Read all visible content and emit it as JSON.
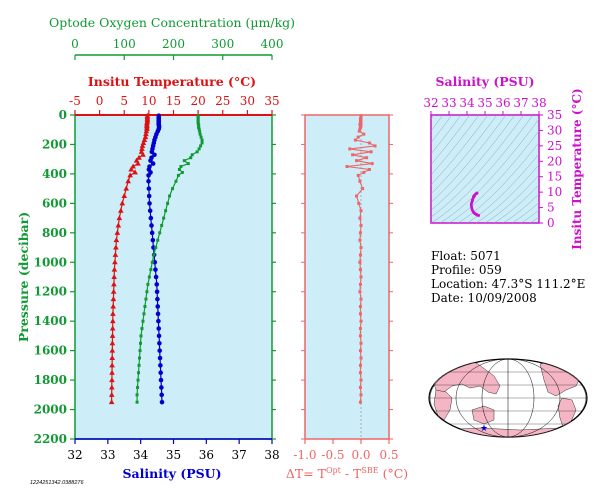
{
  "colors": {
    "panel_bg": "#cdeef9",
    "temperature": "#dd1111",
    "salinity": "#0000cc",
    "oxygen": "#119933",
    "delta_t": "#ee6666",
    "ts_axis": "#cc11cc",
    "axis_black": "#000000",
    "land": "#f4b6c4"
  },
  "float_info": {
    "float": "Float:  5071",
    "profile": "Profile:  059",
    "location": "Location:  47.3°S  111.2°E",
    "date": "Date:  10/09/2008"
  },
  "footer_code": "1224251342.0388276",
  "chart_data": [
    {
      "id": "main_profile",
      "type": "scatter",
      "ylabel": "Pressure (decibar)",
      "y_ticks": [
        0,
        200,
        400,
        600,
        800,
        1000,
        1200,
        1400,
        1600,
        1800,
        2000,
        2200
      ],
      "ylim": [
        2200,
        0
      ],
      "axes": {
        "salinity": {
          "label": "Salinity (PSU)",
          "ticks": [
            32,
            33,
            34,
            35,
            36,
            37,
            38
          ],
          "range": [
            32,
            38
          ],
          "position": "bottom"
        },
        "temperature": {
          "label": "Insitu Temperature (°C)",
          "ticks": [
            -5,
            0,
            5,
            10,
            15,
            20,
            25,
            30,
            35
          ],
          "range": [
            -5,
            35
          ],
          "position": "top"
        },
        "oxygen": {
          "label": "Optode Oxygen Concentration (µm/kg)",
          "ticks": [
            0,
            100,
            200,
            300,
            400
          ],
          "range": [
            0,
            400
          ],
          "position": "top-outer"
        }
      },
      "series": [
        {
          "key": "temperature",
          "axis": "temperature",
          "marker": "triangle",
          "pressure": [
            5,
            15,
            25,
            35,
            45,
            55,
            65,
            75,
            85,
            95,
            110,
            130,
            150,
            170,
            190,
            210,
            230,
            250,
            270,
            290,
            310,
            330,
            350,
            370,
            390,
            410,
            450,
            500,
            550,
            600,
            650,
            700,
            750,
            800,
            850,
            900,
            950,
            1000,
            1050,
            1100,
            1150,
            1200,
            1250,
            1300,
            1350,
            1400,
            1450,
            1500,
            1550,
            1600,
            1650,
            1700,
            1750,
            1800,
            1850,
            1900,
            1950
          ],
          "values": [
            9.7,
            9.7,
            9.7,
            9.7,
            9.7,
            9.6,
            9.6,
            9.6,
            9.6,
            9.6,
            9.5,
            9.4,
            9.3,
            9.1,
            8.9,
            8.7,
            8.6,
            8.5,
            8.8,
            8.0,
            7.5,
            7.8,
            6.8,
            6.4,
            7.2,
            6.2,
            5.8,
            5.4,
            5.0,
            4.6,
            4.3,
            4.0,
            3.8,
            3.6,
            3.4,
            3.3,
            3.2,
            3.1,
            3.0,
            2.95,
            2.9,
            2.85,
            2.8,
            2.75,
            2.7,
            2.68,
            2.65,
            2.62,
            2.6,
            2.58,
            2.56,
            2.54,
            2.52,
            2.5,
            2.48,
            2.46,
            2.44
          ]
        },
        {
          "key": "salinity",
          "axis": "salinity",
          "marker": "circle",
          "pressure": [
            5,
            15,
            25,
            35,
            45,
            55,
            65,
            75,
            85,
            95,
            110,
            130,
            150,
            170,
            190,
            210,
            230,
            250,
            270,
            290,
            310,
            330,
            350,
            370,
            390,
            410,
            450,
            500,
            550,
            600,
            650,
            700,
            750,
            800,
            850,
            900,
            950,
            1000,
            1050,
            1100,
            1150,
            1200,
            1250,
            1300,
            1350,
            1400,
            1450,
            1500,
            1550,
            1600,
            1650,
            1700,
            1750,
            1800,
            1850,
            1900,
            1950
          ],
          "values": [
            34.55,
            34.55,
            34.55,
            34.55,
            34.55,
            34.55,
            34.55,
            34.56,
            34.56,
            34.55,
            34.52,
            34.48,
            34.45,
            34.42,
            34.4,
            34.38,
            34.36,
            34.34,
            34.42,
            34.33,
            34.3,
            34.38,
            34.27,
            34.25,
            34.3,
            34.24,
            34.24,
            34.25,
            34.26,
            34.27,
            34.29,
            34.31,
            34.33,
            34.35,
            34.37,
            34.39,
            34.41,
            34.43,
            34.45,
            34.47,
            34.49,
            34.5,
            34.51,
            34.52,
            34.53,
            34.54,
            34.55,
            34.56,
            34.57,
            34.58,
            34.59,
            34.6,
            34.61,
            34.62,
            34.63,
            34.64,
            34.65
          ]
        },
        {
          "key": "oxygen",
          "axis": "oxygen",
          "marker": "square",
          "pressure": [
            5,
            15,
            25,
            35,
            45,
            55,
            65,
            75,
            85,
            95,
            110,
            130,
            150,
            170,
            190,
            210,
            230,
            250,
            270,
            290,
            310,
            330,
            350,
            370,
            390,
            410,
            450,
            500,
            550,
            600,
            650,
            700,
            750,
            800,
            850,
            900,
            950,
            1000,
            1050,
            1100,
            1150,
            1200,
            1250,
            1300,
            1350,
            1400,
            1450,
            1500,
            1550,
            1600,
            1650,
            1700,
            1750,
            1800,
            1850,
            1900,
            1950
          ],
          "values": [
            250,
            250,
            250,
            250,
            250,
            250,
            251,
            251,
            251,
            252,
            253,
            254,
            256,
            258,
            258,
            255,
            252,
            248,
            238,
            235,
            222,
            230,
            215,
            212,
            218,
            210,
            205,
            198,
            192,
            188,
            184,
            180,
            176,
            172,
            168,
            164,
            160,
            157,
            154,
            151,
            148,
            146,
            144,
            142,
            140,
            138,
            136,
            134,
            133,
            132,
            131,
            130,
            129,
            128,
            127,
            126,
            126
          ]
        }
      ]
    },
    {
      "id": "delta_t",
      "type": "line",
      "xlabel_base": "ΔT= T",
      "xlabel_sup1": "Opt",
      "xlabel_mid": " - T",
      "xlabel_sup2": "SBE",
      "xlabel_end": " (°C)",
      "x_ticks": [
        "-1.0",
        "-0.5",
        "0.0",
        "0.5"
      ],
      "xlim": [
        -1.0,
        0.5
      ],
      "ylim": [
        2200,
        0
      ],
      "pressure": [
        5,
        15,
        25,
        35,
        45,
        55,
        65,
        75,
        85,
        95,
        110,
        130,
        150,
        170,
        190,
        210,
        230,
        250,
        270,
        290,
        310,
        330,
        350,
        370,
        390,
        410,
        450,
        500,
        550,
        600,
        650,
        700,
        750,
        800,
        850,
        900,
        950,
        1000,
        1050,
        1100,
        1150,
        1200,
        1250,
        1300,
        1350,
        1400,
        1450,
        1500,
        1550,
        1600,
        1650,
        1700,
        1750,
        1800,
        1850,
        1900,
        1950
      ],
      "values": [
        0.0,
        0.0,
        -0.01,
        0.0,
        -0.01,
        0.0,
        -0.02,
        0.0,
        -0.01,
        -0.02,
        -0.03,
        0.05,
        -0.05,
        -0.1,
        0.15,
        0.25,
        -0.2,
        0.18,
        -0.15,
        0.1,
        -0.08,
        0.2,
        -0.25,
        0.15,
        0.05,
        -0.05,
        -0.02,
        0.03,
        -0.08,
        -0.04,
        0.0,
        -0.02,
        0.0,
        -0.01,
        -0.02,
        0.0,
        -0.01,
        -0.02,
        -0.01,
        0.0,
        -0.01,
        -0.02,
        0.0,
        -0.01,
        -0.01,
        0.0,
        -0.01,
        -0.01,
        0.0,
        -0.01,
        0.0,
        -0.01,
        -0.01,
        0.0,
        -0.01,
        0.0,
        -0.01
      ]
    },
    {
      "id": "ts_diagram",
      "type": "line",
      "xlabel": "Salinity (PSU)",
      "ylabel": "Insitu Temperature (°C)",
      "x_ticks": [
        32,
        33,
        34,
        35,
        36,
        37,
        38
      ],
      "y_ticks": [
        0,
        5,
        10,
        15,
        20,
        25,
        30,
        35
      ],
      "xlim": [
        32,
        38
      ],
      "ylim": [
        0,
        35
      ],
      "salinity": [
        34.55,
        34.55,
        34.55,
        34.48,
        34.4,
        34.36,
        34.42,
        34.3,
        34.27,
        34.3,
        34.24,
        34.24,
        34.26,
        34.29,
        34.33,
        34.37,
        34.41,
        34.45,
        34.49,
        34.52,
        34.55,
        34.58,
        34.61,
        34.65
      ],
      "temperature": [
        9.7,
        9.7,
        9.6,
        9.4,
        8.9,
        8.6,
        8.8,
        7.5,
        6.8,
        7.2,
        6.2,
        5.8,
        5.0,
        4.3,
        3.8,
        3.4,
        3.2,
        3.0,
        2.9,
        2.8,
        2.65,
        2.58,
        2.52,
        2.44
      ]
    }
  ]
}
